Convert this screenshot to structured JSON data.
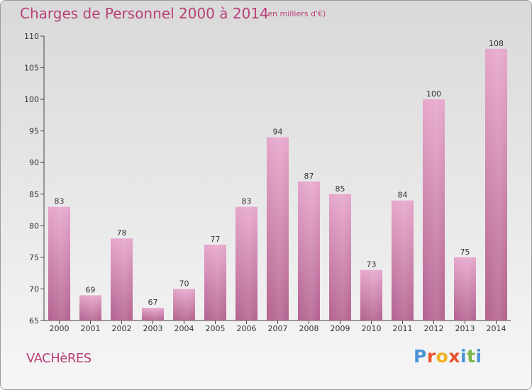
{
  "header": {
    "title": "Charges de Personnel 2000 à 2014",
    "subtitle": "(en milliers d'€)"
  },
  "footer": {
    "commune": "VACHèRES",
    "logo": [
      "P",
      "r",
      "o",
      "x",
      "i",
      "t",
      "i"
    ]
  },
  "colors": {
    "title": "#b8417a",
    "bar_top": "#e6a6cc",
    "bar_bottom": "#b3628f",
    "logo": [
      "#4a93d6",
      "#e8522e",
      "#f2b021",
      "#e8522e",
      "#4a93d6",
      "#7ab648",
      "#4a93d6"
    ]
  },
  "chart_data": {
    "type": "bar",
    "categories": [
      "2000",
      "2001",
      "2002",
      "2003",
      "2004",
      "2005",
      "2006",
      "2007",
      "2008",
      "2009",
      "2010",
      "2011",
      "2012",
      "2013",
      "2014"
    ],
    "values": [
      83,
      69,
      78,
      67,
      70,
      77,
      83,
      94,
      87,
      85,
      73,
      84,
      100,
      75,
      108
    ],
    "yticks": [
      65,
      70,
      75,
      80,
      85,
      90,
      95,
      100,
      105,
      110
    ],
    "ylim": [
      65,
      110
    ],
    "grid": false,
    "data_labels": true
  }
}
